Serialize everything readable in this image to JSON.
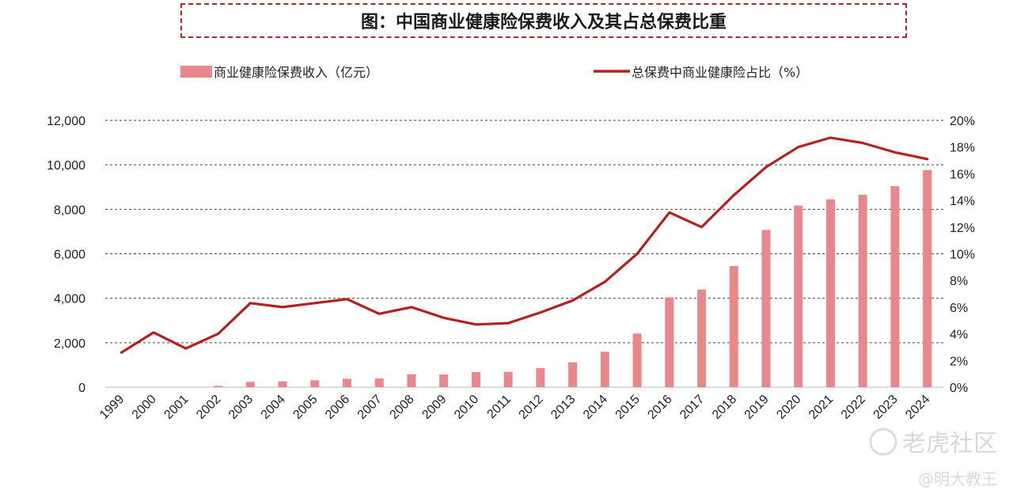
{
  "title": "图：中国商业健康险保费收入及其占总保费比重",
  "chart_data": {
    "type": "bar+line",
    "categories": [
      "1999",
      "2000",
      "2001",
      "2002",
      "2003",
      "2004",
      "2005",
      "2006",
      "2007",
      "2008",
      "2009",
      "2010",
      "2011",
      "2012",
      "2013",
      "2014",
      "2015",
      "2016",
      "2017",
      "2018",
      "2019",
      "2020",
      "2021",
      "2022",
      "2023",
      "2024"
    ],
    "series": [
      {
        "name": "商业健康险保费收入（亿元）",
        "type": "bar",
        "axis": "left",
        "color": "#e8888c",
        "values": [
          0,
          0,
          0,
          60,
          240,
          260,
          310,
          380,
          390,
          580,
          570,
          680,
          690,
          860,
          1120,
          1590,
          2410,
          4040,
          4390,
          5450,
          7070,
          8170,
          8450,
          8650,
          9040,
          9770
        ]
      },
      {
        "name": "总保费中商业健康险占比（%）",
        "type": "line",
        "axis": "right",
        "color": "#b22222",
        "values": [
          2.6,
          4.1,
          2.9,
          4.0,
          6.3,
          6.0,
          6.3,
          6.6,
          5.5,
          6.0,
          5.2,
          4.7,
          4.8,
          5.6,
          6.5,
          7.9,
          10.0,
          13.1,
          12.0,
          14.4,
          16.5,
          18.0,
          18.7,
          18.3,
          17.6,
          17.1
        ]
      }
    ],
    "y_left": {
      "ylim": [
        0,
        12000
      ],
      "ticks": [
        0,
        2000,
        4000,
        6000,
        8000,
        10000,
        12000
      ],
      "tick_labels": [
        "0",
        "2,000",
        "4,000",
        "6,000",
        "8,000",
        "10,000",
        "12,000"
      ]
    },
    "y_right": {
      "ylim": [
        0,
        20
      ],
      "ticks": [
        0,
        2,
        4,
        6,
        8,
        10,
        12,
        14,
        16,
        18,
        20
      ],
      "tick_labels": [
        "0%",
        "2%",
        "4%",
        "6%",
        "8%",
        "10%",
        "12%",
        "14%",
        "16%",
        "18%",
        "20%"
      ]
    },
    "grid": "dashed horizontal",
    "legend_position": "top"
  },
  "watermarks": {
    "logo_text": "老虎社区",
    "author_text": "@明大教王"
  }
}
